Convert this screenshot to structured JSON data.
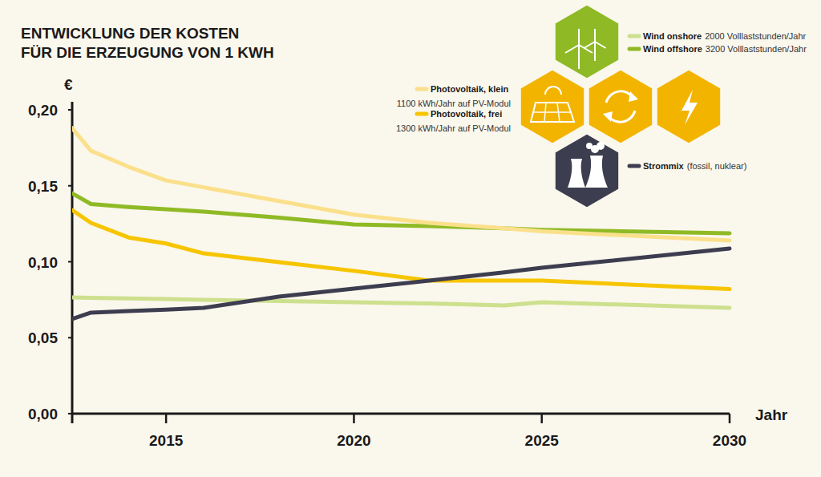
{
  "chart_data": {
    "type": "line",
    "title": [
      "ENTWICKLUNG DER KOSTEN",
      "FÜR DIE ERZEUGUNG VON 1 KWH"
    ],
    "y_label": "€",
    "x_label": "Jahr",
    "x": [
      2012.5,
      2013,
      2014,
      2015,
      2016,
      2018,
      2020,
      2022,
      2024,
      2025,
      2030
    ],
    "xlim": [
      2012.5,
      2030
    ],
    "xticks": [
      2015,
      2020,
      2025,
      2030
    ],
    "ylim": [
      0,
      0.2
    ],
    "yticks": [
      {
        "value": 0,
        "label": "0,00"
      },
      {
        "value": 0.05,
        "label": "0,05"
      },
      {
        "value": 0.1,
        "label": "0,10"
      },
      {
        "value": 0.15,
        "label": "0,15"
      },
      {
        "value": 0.2,
        "label": "0,20"
      }
    ],
    "grid": false,
    "legend": "top-right",
    "series": [
      {
        "name": "Wind onshore",
        "color": "#cde08e",
        "values": [
          0.0765,
          0.0762,
          0.0758,
          0.0755,
          0.075,
          0.0742,
          0.0733,
          0.0725,
          0.0712,
          0.0733,
          0.0697
        ]
      },
      {
        "name": "Wind offshore",
        "color": "#8fba25",
        "values": [
          0.145,
          0.138,
          0.136,
          0.1345,
          0.133,
          0.129,
          0.1245,
          0.1235,
          0.122,
          0.121,
          0.1187
        ]
      },
      {
        "name": "Photovoltaik, klein",
        "color": "#fbe08c",
        "values": [
          0.188,
          0.173,
          0.1625,
          0.1535,
          0.149,
          0.14,
          0.131,
          0.1256,
          0.122,
          0.12,
          0.114
        ]
      },
      {
        "name": "Photovoltaik, frei",
        "color": "#f6c500",
        "values": [
          0.134,
          0.1256,
          0.116,
          0.112,
          0.1055,
          0.0997,
          0.094,
          0.0876,
          0.0876,
          0.0876,
          0.082
        ]
      },
      {
        "name": "Strommix",
        "color": "#3d3d50",
        "values": [
          0.0623,
          0.0665,
          0.0675,
          0.0685,
          0.0697,
          0.077,
          0.0823,
          0.0876,
          0.093,
          0.096,
          0.1087
        ]
      }
    ],
    "annotations": [
      "2000 Volllaststunden/Jahr",
      "3200 Volllaststunden/Jahr",
      "1100 kWh/Jahr auf PV-Modul",
      "1300 kWh/Jahr auf PV-Modul",
      "(fossil, nuklear)"
    ]
  }
}
